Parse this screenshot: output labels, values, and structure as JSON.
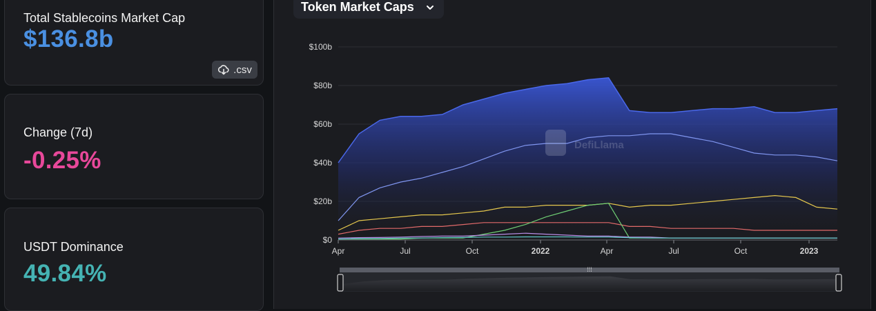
{
  "cards": {
    "market_cap": {
      "label": "Total Stablecoins Market Cap",
      "value": "$136.8b",
      "color": "#4a90e2"
    },
    "csv_button": {
      "label": ".csv",
      "icon": "cloud-download-icon"
    },
    "change": {
      "label": "Change (7d)",
      "value": "-0.25%",
      "color": "#e8489a"
    },
    "dominance": {
      "label": "USDT Dominance",
      "value": "49.84%",
      "color": "#45b3b3"
    }
  },
  "selector": {
    "label": "Token Market Caps",
    "icon": "chevron-down-icon"
  },
  "watermark": "DefiLlama",
  "chart_data": {
    "type": "area",
    "title": "Token Market Caps",
    "y_ticks": [
      "$0",
      "$20b",
      "$40b",
      "$60b",
      "$80b",
      "$100b"
    ],
    "x_ticks": [
      "Apr",
      "Jul",
      "Oct",
      "2022",
      "Apr",
      "Jul",
      "Oct",
      "2023"
    ],
    "x_range": [
      "2021-04",
      "2023-03"
    ],
    "ylim": [
      0,
      100
    ],
    "y_unit": "$b",
    "grid": "horizontal",
    "x": [
      "2021-04",
      "2021-05",
      "2021-06",
      "2021-07",
      "2021-08",
      "2021-09",
      "2021-10",
      "2021-11",
      "2021-12",
      "2022-01",
      "2022-02",
      "2022-03",
      "2022-04",
      "2022-05",
      "2022-05b",
      "2022-06",
      "2022-07",
      "2022-08",
      "2022-09",
      "2022-10",
      "2022-11",
      "2022-12",
      "2023-01",
      "2023-02",
      "2023-03"
    ],
    "series": [
      {
        "color": "#3a57d6",
        "fill": true,
        "values": [
          40,
          55,
          62,
          64,
          64,
          65,
          70,
          73,
          76,
          78,
          80,
          81,
          83,
          84,
          67,
          66,
          66,
          67,
          68,
          68,
          69,
          66,
          66,
          67,
          68
        ]
      },
      {
        "color": "#8096f0",
        "values": [
          10,
          22,
          27,
          30,
          32,
          35,
          38,
          42,
          46,
          49,
          50,
          50,
          53,
          54,
          54,
          55,
          55,
          53,
          51,
          48,
          45,
          44,
          44,
          43,
          41
        ]
      },
      {
        "color": "#e6c84d",
        "values": [
          5,
          10,
          11,
          12,
          13,
          13,
          14,
          15,
          17,
          17,
          18,
          18,
          18,
          19,
          17,
          18,
          18,
          19,
          20,
          21,
          22,
          23,
          22,
          17,
          16
        ]
      },
      {
        "color": "#e26a6a",
        "values": [
          3,
          5,
          6,
          6,
          7,
          7,
          8,
          9,
          9,
          9,
          9,
          9,
          9,
          9,
          7,
          7,
          6,
          6,
          6,
          6,
          5,
          5,
          5,
          5,
          5
        ]
      },
      {
        "color": "#6fce74",
        "values": [
          0.5,
          0.5,
          0.5,
          0.5,
          1,
          1,
          1,
          3,
          5,
          8,
          12,
          15,
          18,
          19,
          1,
          1,
          1,
          1,
          1,
          1,
          1,
          1,
          1,
          1,
          1
        ]
      },
      {
        "color": "#b98de6",
        "values": [
          1,
          1.2,
          1.3,
          1.5,
          1.8,
          2,
          2,
          2.5,
          3,
          3.5,
          3,
          2.5,
          2,
          2,
          1.5,
          1.5,
          1,
          1,
          1,
          1,
          1,
          1,
          1,
          1,
          1
        ]
      },
      {
        "color": "#5fc7c7",
        "values": [
          0.5,
          0.7,
          0.8,
          1,
          1,
          1.2,
          1.3,
          1.5,
          1.5,
          1.6,
          1.6,
          1.6,
          1.5,
          1.5,
          1.2,
          1,
          1,
          1,
          1,
          1,
          1,
          1,
          1,
          1,
          1
        ]
      }
    ]
  }
}
